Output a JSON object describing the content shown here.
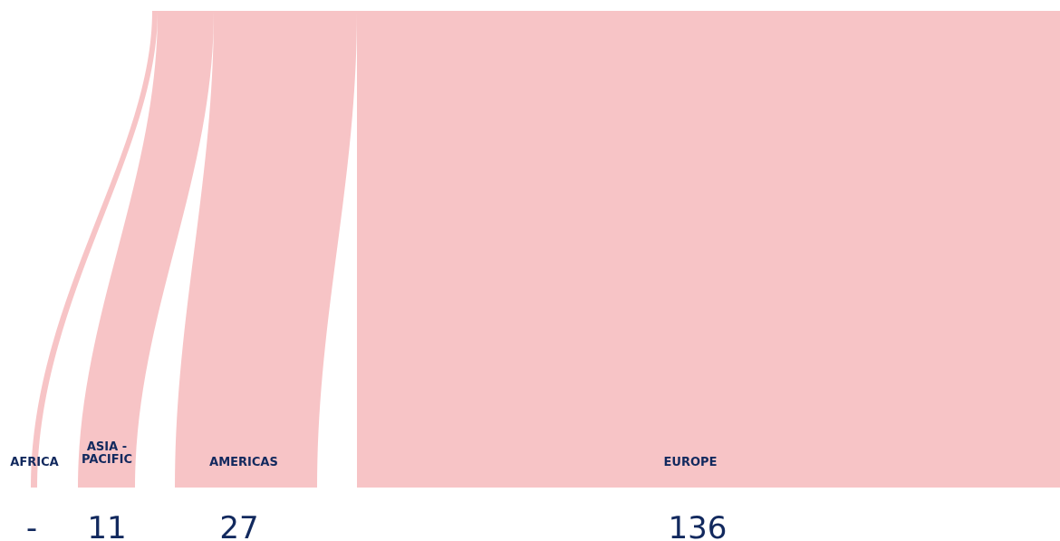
{
  "chart_data": {
    "type": "sankey",
    "title": "",
    "total": 174,
    "color": "#f7c4c6",
    "text_color": "#12295e",
    "regions": [
      {
        "label": "AFRICA",
        "value_label": "-"
      },
      {
        "label": "ASIA -\nPACIFIC",
        "value_label": "11",
        "value": 11
      },
      {
        "label": "AMERICAS",
        "value_label": "27",
        "value": 27
      },
      {
        "label": "EUROPE",
        "value_label": "136",
        "value": 136
      }
    ]
  }
}
